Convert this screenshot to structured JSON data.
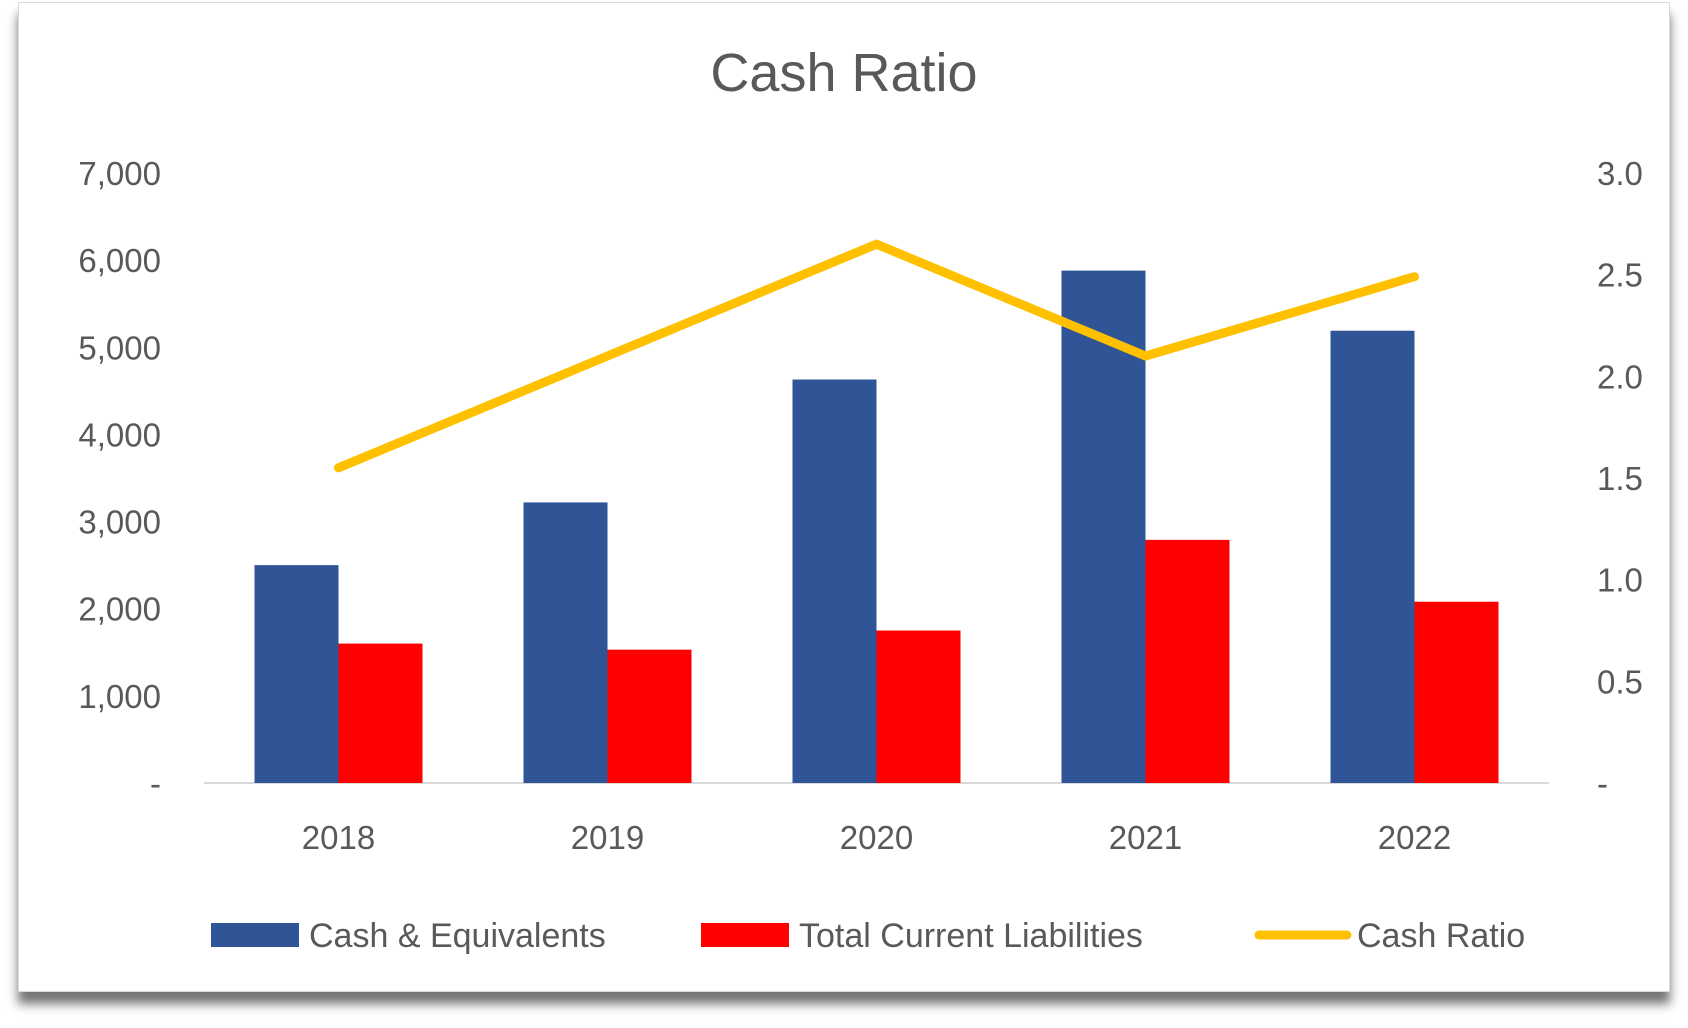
{
  "chart_data": {
    "type": "bar",
    "title": "Cash Ratio",
    "categories": [
      "2018",
      "2019",
      "2020",
      "2021",
      "2022"
    ],
    "series": [
      {
        "name": "Cash & Equivalents",
        "kind": "bar",
        "axis": "left",
        "color": "#2F5597",
        "values": [
          2500,
          3220,
          4630,
          5880,
          5190
        ]
      },
      {
        "name": "Total Current Liabilities",
        "kind": "bar",
        "axis": "left",
        "color": "#FF0000",
        "values": [
          1600,
          1530,
          1750,
          2790,
          2080
        ]
      },
      {
        "name": "Cash Ratio",
        "kind": "line",
        "axis": "right",
        "color": "#FFC000",
        "values": [
          1.55,
          2.1,
          2.65,
          2.1,
          2.49
        ]
      }
    ],
    "left_axis": {
      "ylim": [
        0,
        7000
      ],
      "tick_values": [
        0,
        1000,
        2000,
        3000,
        4000,
        5000,
        6000,
        7000
      ],
      "tick_labels": [
        "-",
        "1,000",
        "2,000",
        "3,000",
        "4,000",
        "5,000",
        "6,000",
        "7,000"
      ]
    },
    "right_axis": {
      "ylim": [
        0,
        3.0
      ],
      "tick_values": [
        0,
        0.5,
        1.0,
        1.5,
        2.0,
        2.5,
        3.0
      ],
      "tick_labels": [
        "-",
        "0.5",
        "1.0",
        "1.5",
        "2.0",
        "2.5",
        "3.0"
      ]
    },
    "grid": false,
    "legend_position": "bottom"
  }
}
